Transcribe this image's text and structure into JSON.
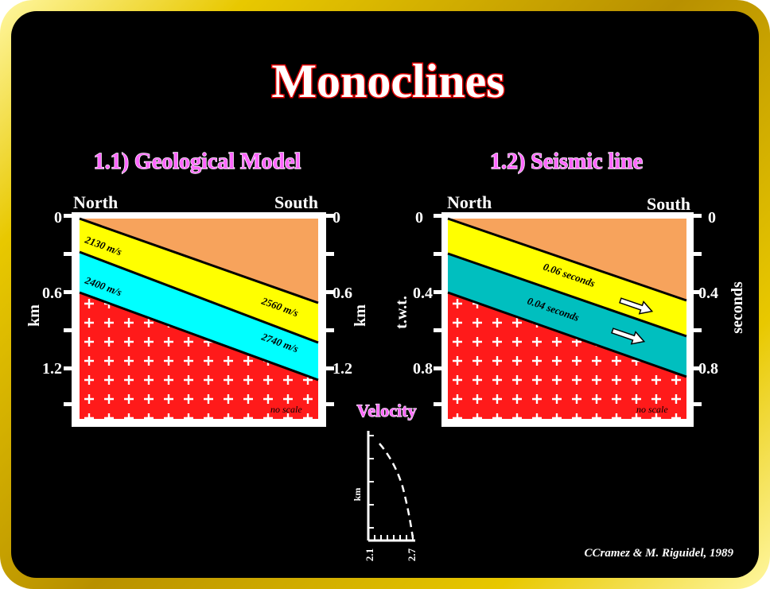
{
  "title": "Monoclines",
  "panels": {
    "geological": {
      "heading": "1.1) Geological Model",
      "left_label": "North",
      "right_label": "South",
      "axis_unit_left": "km",
      "axis_unit_right": "km",
      "ticks_left": [
        "0",
        "0.6",
        "1.2"
      ],
      "ticks_right": [
        "0",
        "0.6",
        "1.2"
      ],
      "velocities": [
        "2130 m/s",
        "2400 m/s",
        "2560 m/s",
        "2740 m/s"
      ],
      "scale_note": "no scale"
    },
    "seismic": {
      "heading": "1.2) Seismic line",
      "left_label": "North",
      "right_label": "South",
      "axis_unit_left": "t.w.t.",
      "axis_unit_right": "seconds",
      "ticks_left": [
        "0",
        "0.4",
        "0.8"
      ],
      "ticks_right": [
        "0",
        "0.4",
        "0.8"
      ],
      "interval_times": [
        "0.06 seconds",
        "0.04 seconds"
      ],
      "scale_note": "no scale"
    }
  },
  "velocity_plot": {
    "title": "Velocity",
    "ylabel": "km",
    "x_min_label": "2.1",
    "x_max_label": "2.7"
  },
  "credit": "CCramez & M. Riguidel, 1989",
  "colors": {
    "background": "#000000",
    "frame": "#e8c800",
    "title_fill": "#ffffff",
    "title_outline": "#e00000",
    "heading_fill": "#ff66ff",
    "top_layer": "#f7a35c",
    "yellow_layer": "#ffff00",
    "cyan_layer": "#00ffff",
    "teal_layer": "#00bfbf",
    "basement": "#ff1a1a"
  }
}
